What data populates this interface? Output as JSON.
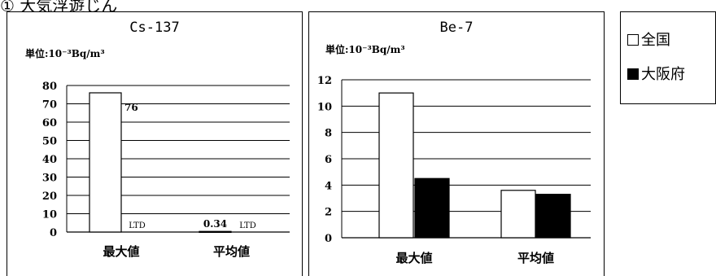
{
  "heading": "① 大気浮遊じん",
  "legend": [
    {
      "label": "全国",
      "color": "#ffffff"
    },
    {
      "label": "大阪府",
      "color": "#000000"
    }
  ],
  "chart_data": [
    {
      "type": "bar",
      "title": "Cs-137",
      "unit_label": "単位:10⁻³Bq/m³",
      "categories": [
        "最大値",
        "平均値"
      ],
      "series": [
        {
          "name": "全国",
          "values": [
            76,
            0.34
          ],
          "color": "#ffffff"
        },
        {
          "name": "大阪府",
          "values": [
            null,
            null
          ],
          "color": "#000000"
        }
      ],
      "data_labels": [
        {
          "series": 0,
          "category": 0,
          "text": "76"
        },
        {
          "series": 0,
          "category": 1,
          "text": "0.34"
        },
        {
          "series": 1,
          "category": 0,
          "text": "LTD"
        },
        {
          "series": 1,
          "category": 1,
          "text": "LTD"
        }
      ],
      "ylim": [
        0,
        80
      ],
      "yticks": [
        0,
        10,
        20,
        30,
        40,
        50,
        60,
        70,
        80
      ],
      "grid": true
    },
    {
      "type": "bar",
      "title": "Be-7",
      "unit_label": "単位:10⁻³Bq/m³",
      "categories": [
        "最大値",
        "平均値"
      ],
      "series": [
        {
          "name": "全国",
          "values": [
            11,
            3.6
          ],
          "color": "#ffffff"
        },
        {
          "name": "大阪府",
          "values": [
            4.5,
            3.3
          ],
          "color": "#000000"
        }
      ],
      "data_labels": [],
      "ylim": [
        0,
        12
      ],
      "yticks": [
        0,
        2,
        4,
        6,
        8,
        10,
        12
      ],
      "grid": true
    }
  ]
}
